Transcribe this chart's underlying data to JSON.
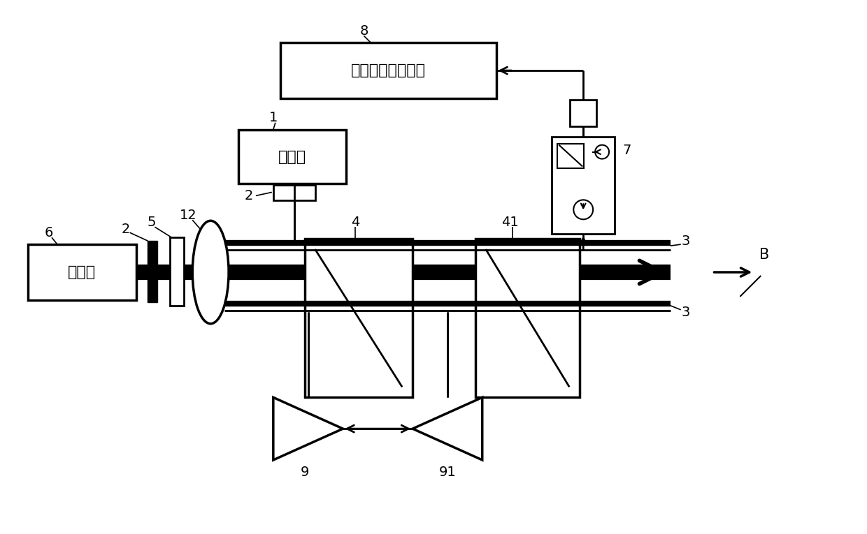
{
  "bg_color": "#ffffff",
  "fig_width": 12.4,
  "fig_height": 7.65,
  "pump_text": "泵浦光",
  "probe_text": "探测光",
  "data_text": "数据采集处理系统",
  "B_label": "B"
}
